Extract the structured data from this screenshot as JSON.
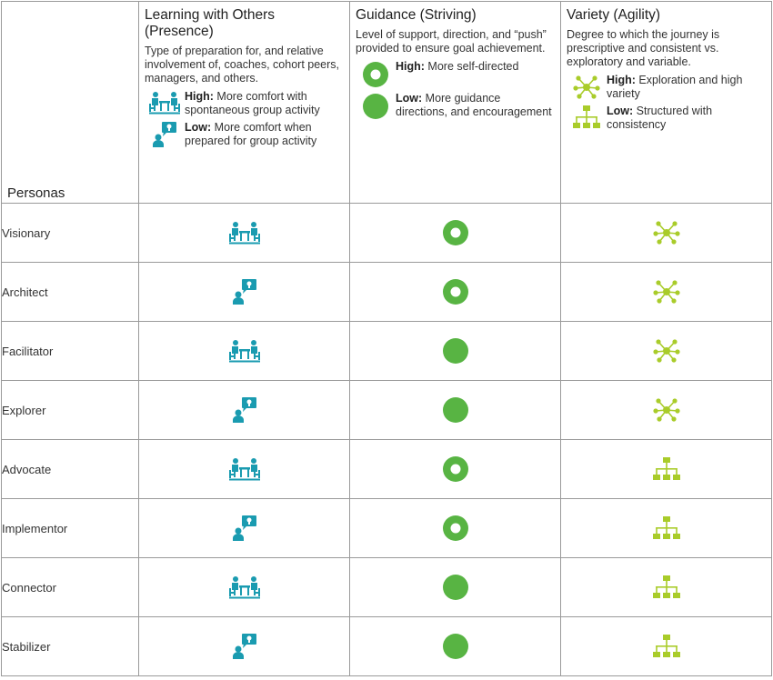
{
  "header": {
    "personas_label": "Personas",
    "columns": [
      {
        "title": "Learning with Others (Presence)",
        "description": "Type of preparation for, and relative involvement of, coaches, cohort peers, managers, and others.",
        "legend": [
          {
            "level": "High:",
            "text": "More comfort with spontaneous group activity",
            "icon": "group-meeting-icon"
          },
          {
            "level": "Low:",
            "text": "More comfort when prepared for group activity",
            "icon": "presenter-icon"
          }
        ]
      },
      {
        "title": "Guidance (Striving)",
        "description": "Level of support, direction, and “push” provided to ensure goal achievement.",
        "legend": [
          {
            "level": "High:",
            "text": "More self-directed",
            "icon": "ring-circle-icon"
          },
          {
            "level": "Low:",
            "text": "More guidance directions, and encouragement",
            "icon": "solid-circle-icon"
          }
        ]
      },
      {
        "title": "Variety (Agility)",
        "description": "Degree to which the journey is prescriptive and consistent vs. exploratory and variable.",
        "legend": [
          {
            "level": "High:",
            "text": "Exploration and high variety",
            "icon": "network-icon"
          },
          {
            "level": "Low:",
            "text": "Structured with consistency",
            "icon": "hierarchy-icon"
          }
        ]
      }
    ]
  },
  "rows": [
    {
      "persona": "Visionary",
      "presence": "high",
      "guidance": "high",
      "variety": "high"
    },
    {
      "persona": "Architect",
      "presence": "low",
      "guidance": "high",
      "variety": "high"
    },
    {
      "persona": "Facilitator",
      "presence": "high",
      "guidance": "low",
      "variety": "high"
    },
    {
      "persona": "Explorer",
      "presence": "low",
      "guidance": "low",
      "variety": "high"
    },
    {
      "persona": "Advocate",
      "presence": "high",
      "guidance": "high",
      "variety": "low"
    },
    {
      "persona": "Implementor",
      "presence": "low",
      "guidance": "high",
      "variety": "low"
    },
    {
      "persona": "Connector",
      "presence": "high",
      "guidance": "low",
      "variety": "low"
    },
    {
      "persona": "Stabilizer",
      "presence": "low",
      "guidance": "low",
      "variety": "low"
    }
  ],
  "colors": {
    "teal": "#1a9bb0",
    "green": "#58b443",
    "lime": "#a9cc2a",
    "border": "#9a9a9a"
  }
}
